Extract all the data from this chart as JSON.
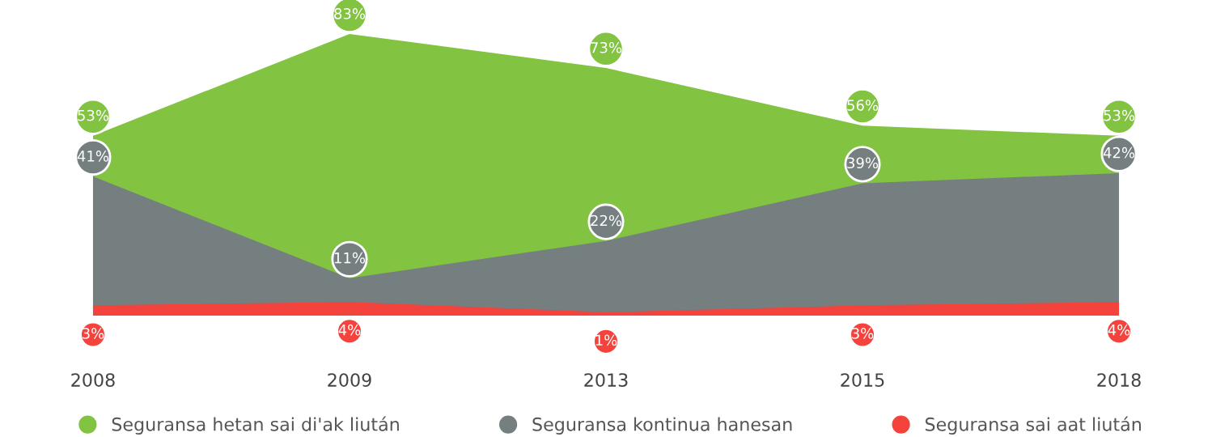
{
  "chart_data": {
    "type": "area",
    "categories": [
      "2008",
      "2009",
      "2013",
      "2015",
      "2018"
    ],
    "series": [
      {
        "name": "Seguransa hetan sai di'ak liután",
        "color": "#82c341",
        "values": [
          53,
          83,
          73,
          56,
          53
        ],
        "value_labels": [
          "53%",
          "83%",
          "73%",
          "56%",
          "53%"
        ]
      },
      {
        "name": "Seguransa kontinua hanesan",
        "color": "#757f80",
        "values": [
          41,
          11,
          22,
          39,
          42
        ],
        "value_labels": [
          "41%",
          "11%",
          "22%",
          "39%",
          "42%"
        ]
      },
      {
        "name": "Seguransa sai aat liután",
        "color": "#f4433c",
        "values": [
          3,
          4,
          1,
          3,
          4
        ],
        "value_labels": [
          "3%",
          "4%",
          "1%",
          "3%",
          "4%"
        ]
      }
    ],
    "legend": "bottom",
    "grid": false
  }
}
